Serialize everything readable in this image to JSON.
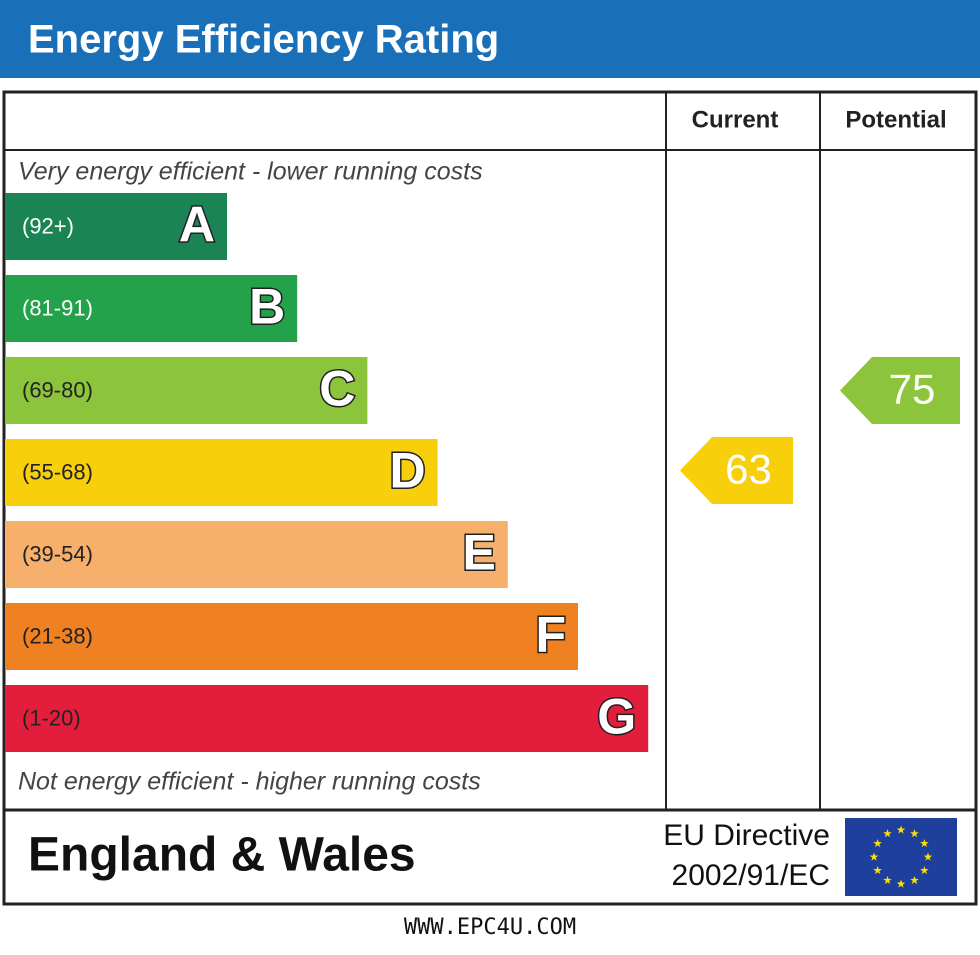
{
  "header": {
    "title": "Energy Efficiency Rating"
  },
  "columns": {
    "current": "Current",
    "potential": "Potential"
  },
  "top_note": "Very energy efficient - lower running costs",
  "bands": [
    {
      "range": "(92+)",
      "letter": "A",
      "color": "#1b8455"
    },
    {
      "range": "(81-91)",
      "letter": "B",
      "color": "#23a24b"
    },
    {
      "range": "(69-80)",
      "letter": "C",
      "color": "#8cc43c"
    },
    {
      "range": "(55-68)",
      "letter": "D",
      "color": "#f7cf0a"
    },
    {
      "range": "(39-54)",
      "letter": "E",
      "color": "#f6b06c"
    },
    {
      "range": "(21-38)",
      "letter": "F",
      "color": "#ef8122"
    },
    {
      "range": "(1-20)",
      "letter": "G",
      "color": "#e31d3c"
    }
  ],
  "bottom_note": "Not energy efficient - higher running costs",
  "current": {
    "value": 63,
    "color": "#f7cf0a"
  },
  "potential": {
    "value": 75,
    "color": "#8cc43c"
  },
  "footer": {
    "region": "England & Wales",
    "directive": [
      "EU Directive",
      "2002/91/EC"
    ]
  },
  "website": "WWW.EPC4U.COM"
}
